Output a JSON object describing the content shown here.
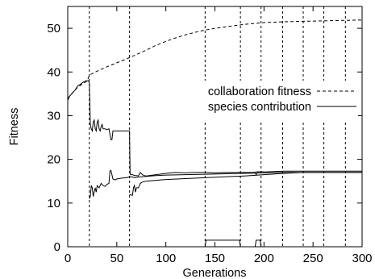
{
  "chart_data": {
    "type": "line",
    "title": "",
    "xlabel": "Generations",
    "ylabel": "Fitness",
    "xlim": [
      0,
      300
    ],
    "ylim": [
      0,
      55
    ],
    "xticks": [
      0,
      50,
      100,
      150,
      200,
      250,
      300
    ],
    "yticks": [
      0,
      10,
      20,
      30,
      40,
      50
    ],
    "grid": false,
    "legend_position": "right",
    "colors": {
      "line": "#000000",
      "background": "#ffffff"
    },
    "vertical_markers": [
      22,
      63,
      140,
      176,
      197,
      219,
      240,
      261,
      283
    ],
    "series": [
      {
        "name": "collaboration fitness",
        "style": "dashed",
        "x": [
          0,
          10,
          20,
          22,
          30,
          40,
          50,
          60,
          70,
          80,
          90,
          100,
          110,
          120,
          130,
          140,
          150,
          160,
          170,
          180,
          190,
          200,
          220,
          240,
          260,
          280,
          300
        ],
        "y": [
          34,
          36.5,
          38,
          39.3,
          40.2,
          41.2,
          42.1,
          43.0,
          44.0,
          45.0,
          46.1,
          47.0,
          47.8,
          48.5,
          49.1,
          49.6,
          50.0,
          50.3,
          50.6,
          50.9,
          51.1,
          51.3,
          51.5,
          51.6,
          51.7,
          51.8,
          51.9
        ]
      },
      {
        "name": "species contribution",
        "style": "solid",
        "segments": [
          {
            "x": [
              0,
              2,
              4,
              6,
              8,
              10,
              13,
              16,
              19,
              21,
              22,
              23,
              24,
              25,
              26,
              27,
              28,
              29,
              30,
              31,
              32,
              33,
              34,
              35,
              36,
              37,
              38,
              40,
              42,
              44,
              45,
              46,
              47,
              48,
              50,
              55,
              60,
              63,
              63.5,
              64,
              66,
              68,
              70,
              72,
              74,
              76,
              78,
              80,
              90,
              100,
              110,
              120,
              130,
              140,
              150,
              160,
              170,
              180,
              190,
              191,
              192,
              193,
              194,
              195,
              196,
              197,
              200,
              220,
              240,
              260,
              280,
              300
            ],
            "y": [
              33.5,
              34.5,
              35,
              35.5,
              36,
              36.8,
              37.2,
              37.7,
              38,
              38,
              37.5,
              28,
              27,
              26.5,
              28.5,
              29,
              27,
              26.5,
              28.5,
              29,
              27,
              26.5,
              27.5,
              28,
              27,
              27,
              27,
              26.8,
              27,
              24.5,
              24.5,
              26.5,
              26.5,
              26.5,
              26.5,
              26.5,
              26.5,
              26.5,
              17,
              16.5,
              16.5,
              16.3,
              16.3,
              16.2,
              17,
              16.5,
              16.3,
              16.2,
              16.5,
              16.8,
              17,
              16.9,
              17,
              17,
              16.9,
              17,
              17,
              17,
              17,
              17.1,
              16.5,
              17.2,
              17.1,
              17.2,
              17.1,
              17.2,
              17.1,
              17.3,
              17.3,
              17.3,
              17.3,
              17.3
            ]
          },
          {
            "x": [
              22,
              23,
              24,
              25,
              26,
              27,
              28,
              29,
              30,
              32,
              34,
              36,
              38,
              40,
              42,
              43,
              44,
              45,
              46,
              48,
              50,
              55,
              60,
              63,
              65,
              68,
              70,
              75,
              80,
              90,
              100,
              120,
              140,
              160,
              180,
              200,
              220,
              240,
              260,
              280,
              300
            ],
            "y": [
              11,
              11.5,
              14,
              13.5,
              11.5,
              12.5,
              13.5,
              12.5,
              14,
              13.5,
              14.5,
              14,
              13.8,
              14.3,
              14.5,
              17.3,
              17.5,
              16.5,
              15.5,
              15.3,
              15.5,
              15.7,
              15.8,
              16,
              16,
              15.8,
              15.9,
              16,
              16.1,
              16.3,
              16.4,
              16.5,
              16.6,
              16.7,
              16.8,
              16.9,
              17,
              17,
              17,
              17,
              17
            ]
          },
          {
            "x": [
              63,
              65,
              66,
              67,
              68,
              69,
              70,
              72,
              74,
              76,
              80,
              90,
              100,
              120,
              140,
              160,
              180,
              200,
              220,
              240,
              260,
              280,
              300
            ],
            "y": [
              12,
              11.8,
              11.8,
              13.5,
              14,
              12.5,
              13.5,
              13.5,
              14.5,
              14.8,
              15,
              15.2,
              15.4,
              15.6,
              15.8,
              16,
              16.2,
              16.5,
              16.8,
              17,
              17,
              17,
              17
            ]
          },
          {
            "x": [
              140,
              141,
              175,
              176
            ],
            "y": [
              0,
              1.5,
              1.5,
              0
            ]
          },
          {
            "x": [
              191,
              192,
              196,
              197
            ],
            "y": [
              0,
              1.5,
              1.5,
              0
            ]
          }
        ]
      }
    ]
  }
}
